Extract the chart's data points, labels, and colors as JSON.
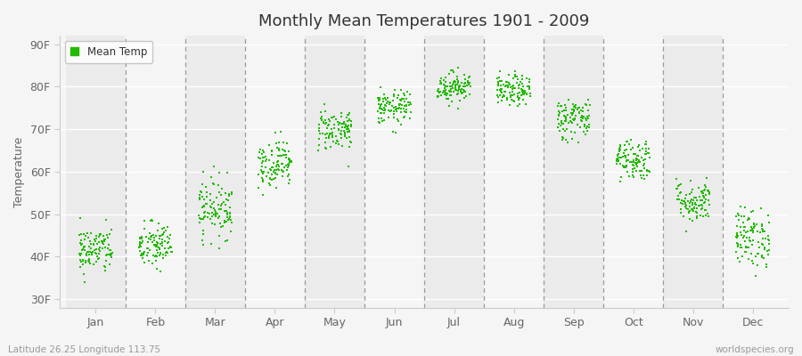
{
  "title": "Monthly Mean Temperatures 1901 - 2009",
  "ylabel": "Temperature",
  "xlabel_labels": [
    "Jan",
    "Feb",
    "Mar",
    "Apr",
    "May",
    "Jun",
    "Jul",
    "Aug",
    "Sep",
    "Oct",
    "Nov",
    "Dec"
  ],
  "ytick_labels": [
    "30F",
    "40F",
    "50F",
    "60F",
    "70F",
    "80F",
    "90F"
  ],
  "ytick_values": [
    30,
    40,
    50,
    60,
    70,
    80,
    90
  ],
  "ylim": [
    28,
    92
  ],
  "legend_label": "Mean Temp",
  "dot_color": "#22bb00",
  "bg_even": "#ebebeb",
  "bg_odd": "#f5f5f5",
  "fig_bg": "#f5f5f5",
  "grid_line_color": "#ffffff",
  "dash_color": "#999999",
  "footer_left": "Latitude 26.25 Longitude 113.75",
  "footer_right": "worldspecies.org",
  "monthly_means": [
    41.5,
    42.5,
    51.5,
    62.0,
    70.0,
    75.0,
    80.0,
    79.0,
    72.5,
    63.0,
    53.0,
    44.5
  ],
  "monthly_stds": [
    2.8,
    2.8,
    3.5,
    2.8,
    2.5,
    2.0,
    1.8,
    1.8,
    2.5,
    2.5,
    2.5,
    3.5
  ],
  "n_years": 109,
  "dot_size": 2.5,
  "scatter_spread": 0.28
}
